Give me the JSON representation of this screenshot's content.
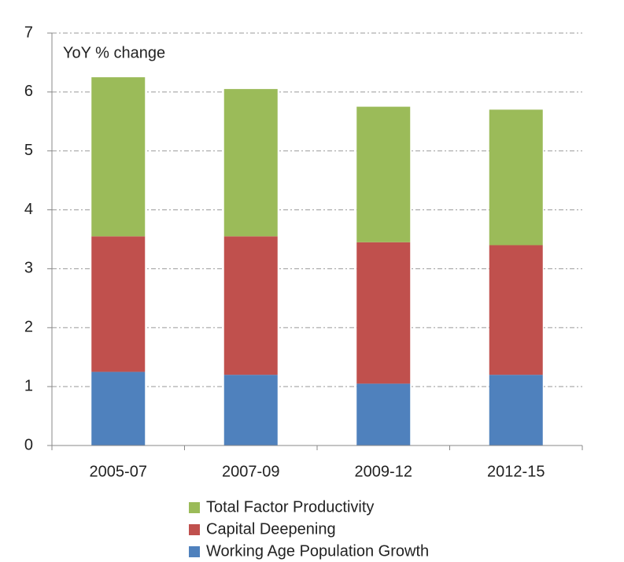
{
  "chart_data": {
    "type": "stacked_bar",
    "annotation": "YoY % change",
    "categories": [
      "2005-07",
      "2007-09",
      "2009-12",
      "2012-15"
    ],
    "series": [
      {
        "name": "Working Age Population Growth",
        "color": "#4f81bd",
        "values": [
          1.25,
          1.2,
          1.05,
          1.2
        ]
      },
      {
        "name": "Capital Deepening",
        "color": "#c0504d",
        "values": [
          2.3,
          2.35,
          2.4,
          2.2
        ]
      },
      {
        "name": "Total Factor Productivity",
        "color": "#9bbb59",
        "values": [
          2.7,
          2.5,
          2.3,
          2.3
        ]
      }
    ],
    "ylim": [
      0,
      7
    ],
    "yticks": [
      0,
      1,
      2,
      3,
      4,
      5,
      6,
      7
    ],
    "grid": true,
    "legend": "bottom"
  }
}
